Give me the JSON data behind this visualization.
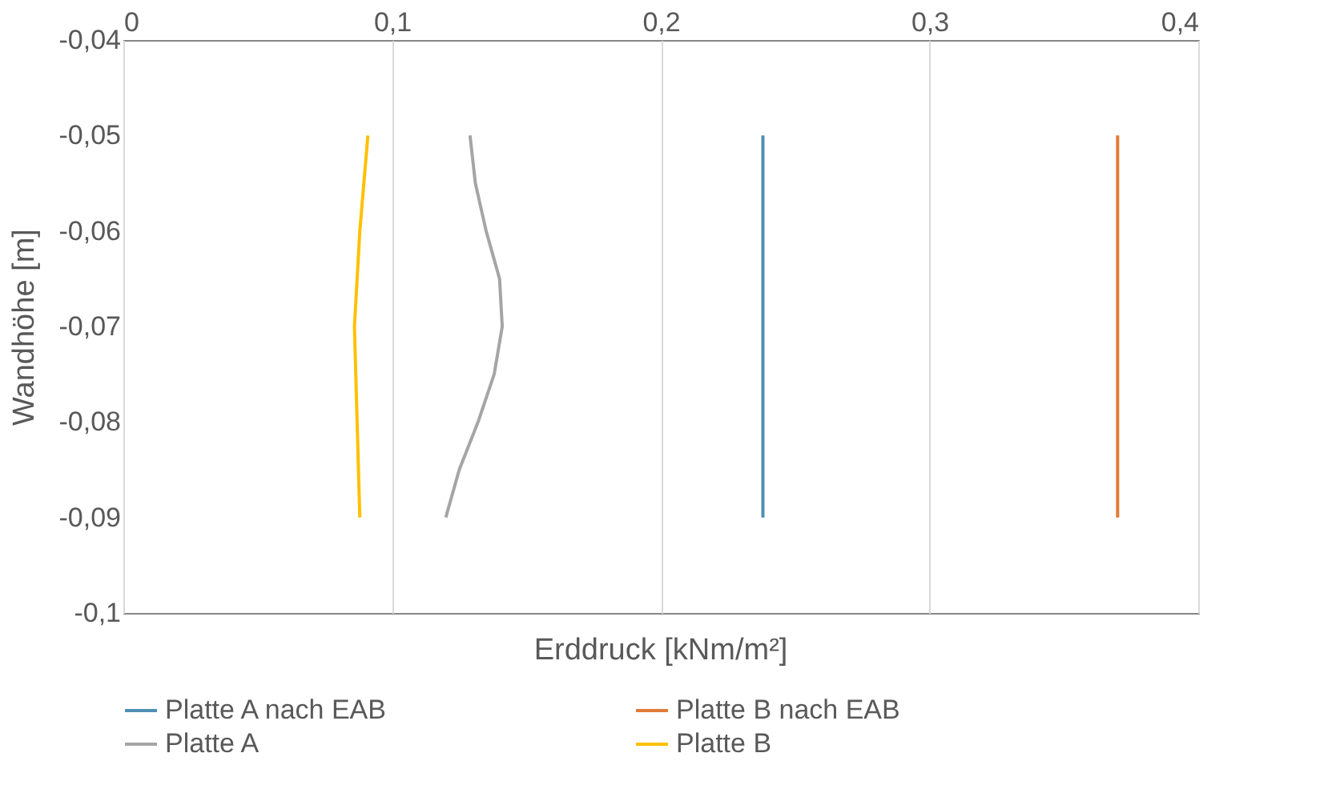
{
  "chart_data": {
    "type": "line",
    "xlabel": "Erddruck [kNm/m²]",
    "ylabel": "Wandhöhe [m]",
    "series": [
      {
        "name": "Platte A nach EAB",
        "color": "#4f8fb5",
        "x": [
          0.238,
          0.238
        ],
        "values": [
          -0.05,
          -0.09
        ]
      },
      {
        "name": "Platte B nach EAB",
        "color": "#e07b39",
        "x": [
          0.37,
          0.37
        ],
        "values": [
          -0.05,
          -0.09
        ]
      },
      {
        "name": "Platte A",
        "color": "#a5a5a5",
        "x": [
          0.129,
          0.131,
          0.135,
          0.14,
          0.141,
          0.138,
          0.132,
          0.125,
          0.12
        ],
        "values": [
          -0.05,
          -0.055,
          -0.06,
          -0.065,
          -0.07,
          -0.075,
          -0.08,
          -0.085,
          -0.09
        ]
      },
      {
        "name": "Platte B",
        "color": "#ffc000",
        "x": [
          0.091,
          0.088,
          0.086,
          0.087,
          0.088
        ],
        "values": [
          -0.05,
          -0.06,
          -0.07,
          -0.08,
          -0.09
        ]
      }
    ],
    "xlim": [
      0,
      0.4
    ],
    "xticks": [
      0,
      {
        "value": 0.1,
        "label": "0,1"
      },
      {
        "value": 0.2,
        "label": "0,2"
      },
      {
        "value": 0.3,
        "label": "0,3"
      },
      {
        "value": 0.4,
        "label": "0,4"
      }
    ],
    "ylim": [
      -0.1,
      -0.04
    ],
    "yticks": [
      {
        "value": -0.1,
        "label": "-0,1"
      },
      {
        "value": -0.09,
        "label": "-0,09"
      },
      {
        "value": -0.08,
        "label": "-0,08"
      },
      {
        "value": -0.07,
        "label": "-0,07"
      },
      {
        "value": -0.06,
        "label": "-0,06"
      },
      {
        "value": -0.05,
        "label": "-0,05"
      },
      {
        "value": -0.04,
        "label": "-0,04"
      }
    ],
    "grid": "x",
    "legend": "bottom",
    "marker": "none",
    "line_style": "solid"
  }
}
